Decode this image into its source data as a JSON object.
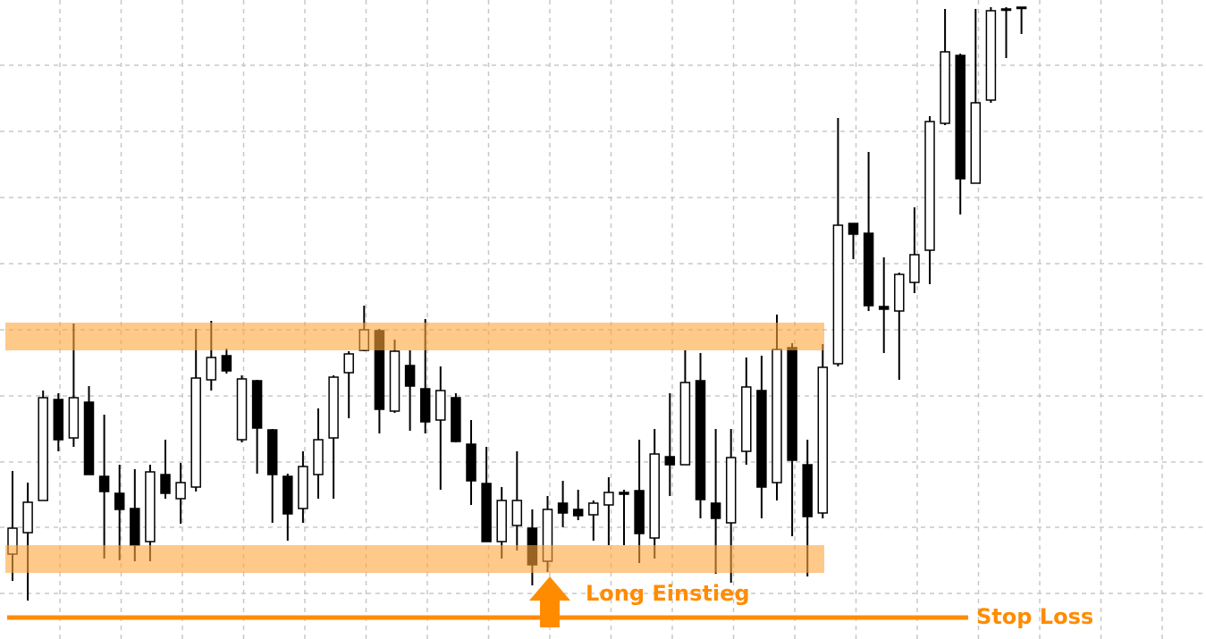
{
  "chart_data": {
    "type": "candlestick",
    "ylim": [
      0,
      715
    ],
    "yticks": [
      51,
      125,
      198,
      272,
      346,
      420,
      494,
      568,
      642
    ],
    "grid": true,
    "up_color": "#ffffff",
    "down_color": "#000000",
    "band_color": "#ffa53a",
    "level_color": "#ff8c00",
    "bands": [
      [
        323,
        354
      ],
      [
        74,
        105
      ]
    ],
    "entry": {
      "label": "Long Einstieg"
    },
    "stop_loss": {
      "label": "Stop Loss",
      "value": 24
    },
    "open": [
      95,
      119,
      155,
      268,
      225,
      265,
      182,
      163,
      146,
      109,
      184,
      157,
      170,
      290,
      317,
      223,
      289,
      234,
      182,
      146,
      184,
      225,
      298,
      323,
      345,
      255,
      306,
      280,
      245,
      270,
      218,
      174,
      109,
      127,
      124,
      87,
      152,
      145,
      139,
      150,
      164,
      166,
      113,
      204,
      195,
      289,
      152,
      130,
      210,
      278,
      175,
      326,
      195,
      141,
      308,
      465,
      454,
      372,
      367,
      399,
      435,
      577,
      653,
      510,
      603,
      705,
      707
    ],
    "high": [
      188,
      175,
      278,
      275,
      353,
      283,
      251,
      195,
      190,
      195,
      223,
      197,
      347,
      356,
      325,
      295,
      290,
      235,
      185,
      210,
      258,
      295,
      322,
      373,
      347,
      335,
      323,
      358,
      305,
      275,
      245,
      215,
      170,
      210,
      145,
      160,
      177,
      167,
      155,
      181,
      167,
      223,
      235,
      275,
      323,
      320,
      235,
      235,
      315,
      317,
      363,
      331,
      223,
      330,
      583,
      465,
      545,
      427,
      410,
      483,
      585,
      705,
      655,
      705,
      707,
      707,
      707
    ],
    "low": [
      65,
      43,
      155,
      210,
      215,
      184,
      90,
      88,
      87,
      87,
      157,
      129,
      165,
      278,
      297,
      220,
      185,
      130,
      110,
      130,
      157,
      157,
      247,
      322,
      230,
      253,
      233,
      230,
      167,
      220,
      150,
      109,
      90,
      99,
      60,
      75,
      125,
      133,
      110,
      105,
      105,
      85,
      90,
      160,
      195,
      135,
      73,
      63,
      195,
      135,
      155,
      115,
      70,
      135,
      305,
      425,
      367,
      320,
      290,
      387,
      397,
      575,
      475,
      510,
      600,
      650,
      677
    ],
    "close": [
      124,
      153,
      270,
      223,
      270,
      184,
      165,
      145,
      105,
      187,
      163,
      175,
      292,
      315,
      300,
      291,
      236,
      184,
      140,
      193,
      223,
      293,
      319,
      346,
      257,
      322,
      283,
      243,
      278,
      221,
      177,
      109,
      155,
      155,
      83,
      145,
      141,
      138,
      152,
      164,
      162,
      118,
      207,
      195,
      287,
      156,
      135,
      203,
      282,
      170,
      324,
      200,
      137,
      304,
      463,
      453,
      373,
      369,
      408,
      430,
      579,
      657,
      515,
      600,
      703,
      705,
      707
    ]
  }
}
